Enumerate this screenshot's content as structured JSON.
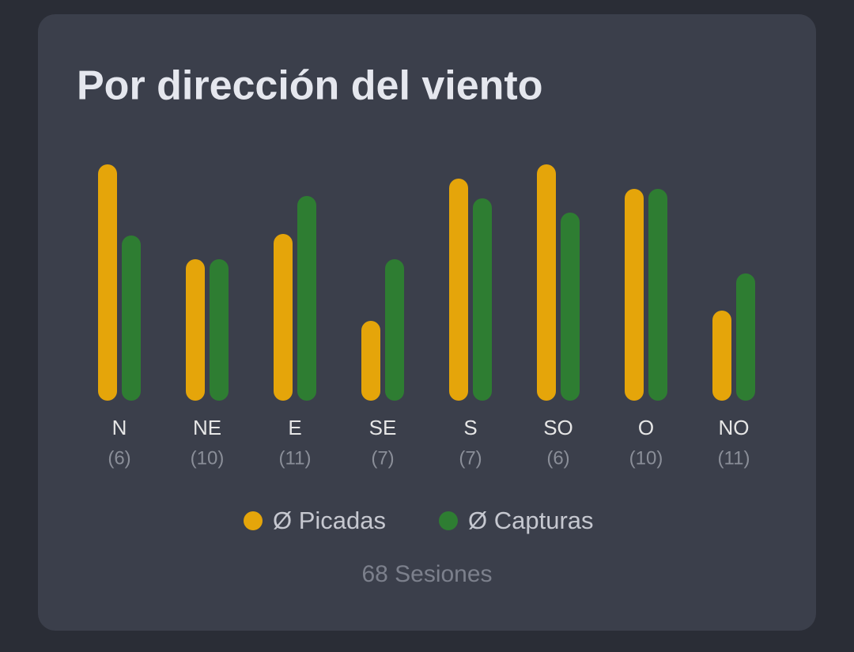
{
  "chart_data": {
    "type": "bar",
    "title": "Por dirección del viento",
    "categories": [
      "N",
      "NE",
      "E",
      "SE",
      "S",
      "SO",
      "O",
      "NO"
    ],
    "sessions": [
      "(6)",
      "(10)",
      "(11)",
      "(7)",
      "(7)",
      "(6)",
      "(10)",
      "(11)"
    ],
    "series": [
      {
        "name": "Ø Picadas",
        "color": "#e5a50a",
        "values": [
          2.99,
          1.79,
          2.11,
          1.01,
          2.81,
          2.99,
          2.68,
          1.14
        ]
      },
      {
        "name": "Ø Capturas",
        "color": "#2e7d32",
        "values": [
          2.09,
          1.79,
          2.59,
          1.79,
          2.56,
          2.38,
          2.68,
          1.61
        ]
      }
    ],
    "footer": "68 Sesiones"
  }
}
